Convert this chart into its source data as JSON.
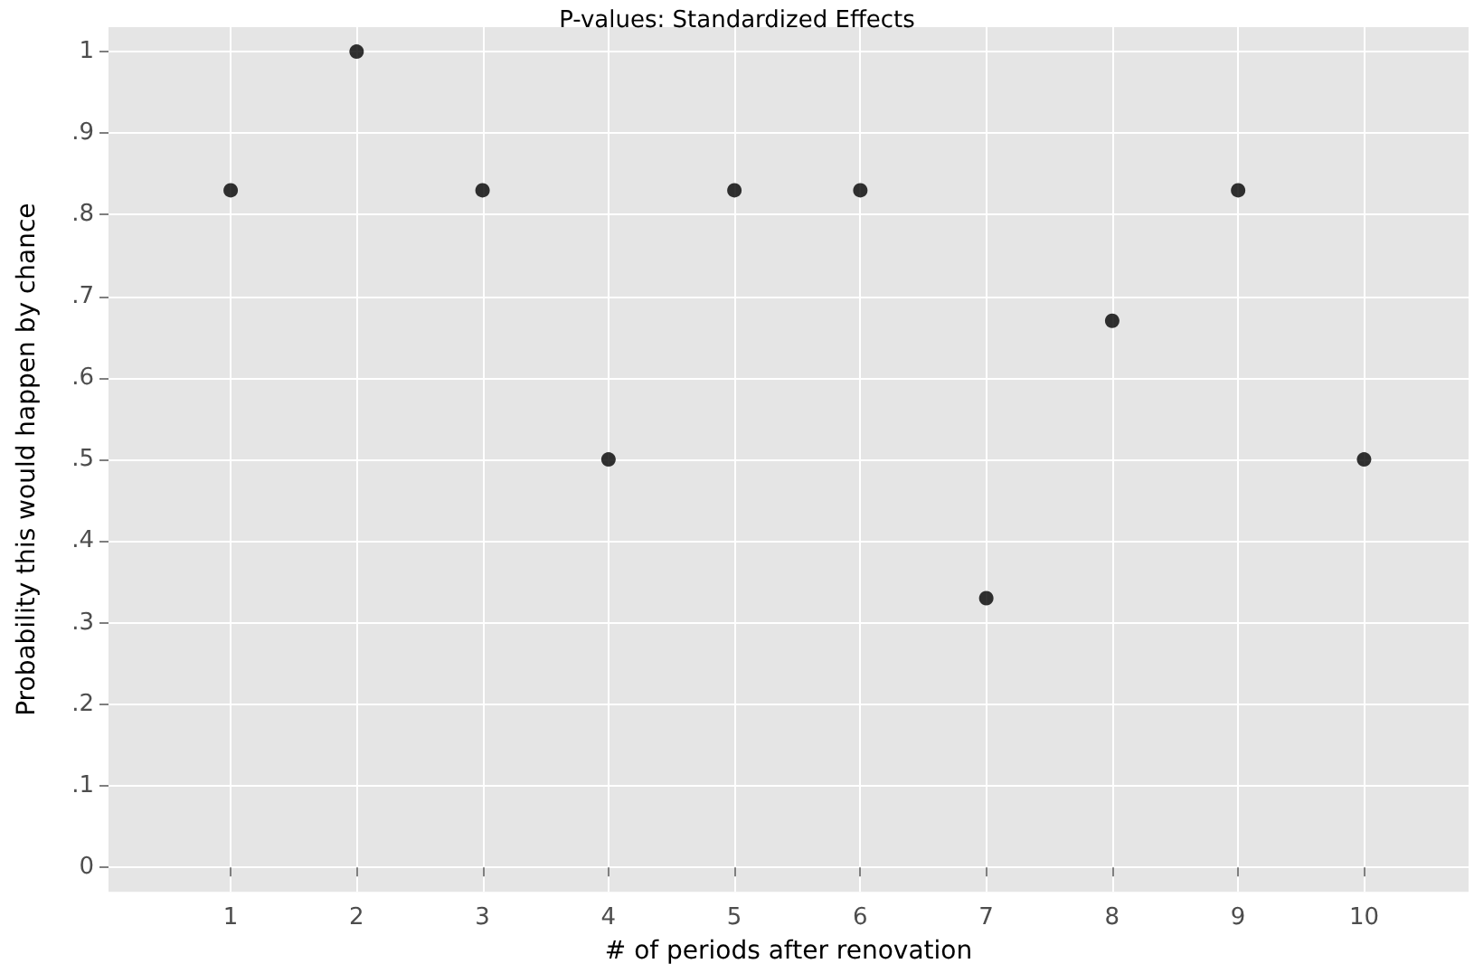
{
  "chart_data": {
    "type": "scatter",
    "title": "P-values: Standardized Effects",
    "xlabel": "# of periods after renovation",
    "ylabel": "Probability this would happen by chance",
    "x": [
      1,
      2,
      3,
      4,
      5,
      6,
      7,
      8,
      9,
      10
    ],
    "series": [
      {
        "color": "#000000",
        "values": [
          0.83,
          1,
          0.83,
          0.5,
          0.83,
          0.83,
          0.33,
          0.67,
          0.83,
          0.5
        ]
      }
    ],
    "xlim": [
      0.03,
      10.83
    ],
    "xticks": [
      1,
      2,
      3,
      4,
      5,
      6,
      7,
      8,
      9,
      10
    ],
    "ylim": [
      -0.03,
      1.03
    ],
    "yticks": [
      0,
      {
        "value": 0.1,
        "label": ".1"
      },
      {
        "value": 0.2,
        "label": ".2"
      },
      {
        "value": 0.3,
        "label": ".3"
      },
      {
        "value": 0.4,
        "label": ".4"
      },
      {
        "value": 0.5,
        "label": ".5"
      },
      {
        "value": 0.6,
        "label": ".6"
      },
      {
        "value": 0.7,
        "label": ".7"
      },
      {
        "value": 0.8,
        "label": ".8"
      },
      {
        "value": 0.9,
        "label": ".9"
      },
      1
    ],
    "grid": true,
    "marker": "circle"
  }
}
